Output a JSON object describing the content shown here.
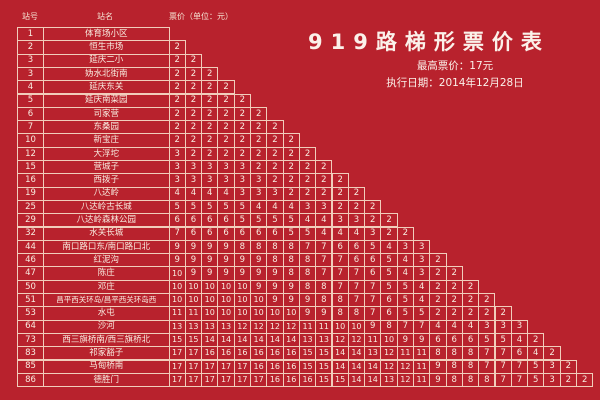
{
  "header": {
    "station_no": "站号",
    "station_name": "站名",
    "fare_label": "票价（单位：元）"
  },
  "title": "919路梯形票价表",
  "max_fare": "最高票价：17元",
  "effective_date": "执行日期：2014年12月28日",
  "colors": {
    "background": "#b8222d",
    "grid": "#f1cdbb",
    "text": "#f8ece0"
  },
  "stations": [
    {
      "no": "1",
      "name": "体育场小区",
      "fares": []
    },
    {
      "no": "2",
      "name": "恒生市场",
      "fares": [
        2
      ]
    },
    {
      "no": "3",
      "name": "延庆二小",
      "fares": [
        2,
        2
      ]
    },
    {
      "no": "3",
      "name": "妫水北街南",
      "fares": [
        2,
        2,
        2
      ]
    },
    {
      "no": "4",
      "name": "延庆东关",
      "fares": [
        2,
        2,
        2,
        2
      ]
    },
    {
      "no": "5",
      "name": "延庆南菜园",
      "fares": [
        2,
        2,
        2,
        2,
        2
      ]
    },
    {
      "no": "6",
      "name": "司家营",
      "fares": [
        2,
        2,
        2,
        2,
        2,
        2
      ]
    },
    {
      "no": "7",
      "name": "东桑园",
      "fares": [
        2,
        2,
        2,
        2,
        2,
        2,
        2
      ]
    },
    {
      "no": "10",
      "name": "新宝庄",
      "fares": [
        2,
        2,
        2,
        2,
        2,
        2,
        2,
        2
      ]
    },
    {
      "no": "12",
      "name": "大浮坨",
      "fares": [
        3,
        2,
        2,
        2,
        2,
        2,
        2,
        2,
        2
      ]
    },
    {
      "no": "15",
      "name": "营城子",
      "fares": [
        3,
        3,
        3,
        3,
        3,
        2,
        2,
        2,
        2,
        2
      ]
    },
    {
      "no": "16",
      "name": "西拨子",
      "fares": [
        3,
        3,
        3,
        3,
        3,
        3,
        2,
        2,
        2,
        2,
        2
      ]
    },
    {
      "no": "19",
      "name": "八达岭",
      "fares": [
        4,
        4,
        4,
        4,
        3,
        3,
        3,
        2,
        2,
        2,
        2,
        2
      ]
    },
    {
      "no": "25",
      "name": "八达岭古长城",
      "fares": [
        5,
        5,
        5,
        5,
        5,
        4,
        4,
        4,
        3,
        3,
        2,
        2,
        2
      ]
    },
    {
      "no": "29",
      "name": "八达岭森林公园",
      "fares": [
        6,
        6,
        6,
        6,
        5,
        5,
        5,
        5,
        4,
        4,
        3,
        3,
        2,
        2
      ]
    },
    {
      "no": "32",
      "name": "水关长城",
      "fares": [
        7,
        6,
        6,
        6,
        6,
        6,
        6,
        5,
        5,
        4,
        4,
        4,
        3,
        2,
        2
      ]
    },
    {
      "no": "44",
      "name": "南口路口东/南口路口北",
      "fares": [
        9,
        9,
        9,
        9,
        8,
        8,
        8,
        8,
        7,
        7,
        6,
        6,
        5,
        4,
        3,
        3
      ]
    },
    {
      "no": "46",
      "name": "红泥沟",
      "fares": [
        9,
        9,
        9,
        9,
        9,
        9,
        8,
        8,
        8,
        7,
        7,
        6,
        6,
        5,
        4,
        3,
        2
      ]
    },
    {
      "no": "47",
      "name": "陈庄",
      "fares": [
        10,
        9,
        9,
        9,
        9,
        9,
        9,
        8,
        8,
        7,
        7,
        7,
        6,
        5,
        4,
        3,
        2,
        2
      ]
    },
    {
      "no": "50",
      "name": "邓庄",
      "fares": [
        10,
        10,
        10,
        10,
        10,
        9,
        9,
        9,
        8,
        8,
        7,
        7,
        7,
        5,
        5,
        4,
        2,
        2,
        2
      ]
    },
    {
      "no": "51",
      "name": "昌平西关环岛/昌平西关环岛西",
      "fares": [
        10,
        10,
        10,
        10,
        10,
        10,
        9,
        9,
        9,
        8,
        8,
        7,
        7,
        6,
        5,
        4,
        2,
        2,
        2,
        2
      ]
    },
    {
      "no": "53",
      "name": "水屯",
      "fares": [
        11,
        11,
        10,
        10,
        10,
        10,
        10,
        10,
        9,
        9,
        8,
        8,
        7,
        6,
        5,
        5,
        2,
        2,
        2,
        2,
        2
      ]
    },
    {
      "no": "64",
      "name": "沙河",
      "fares": [
        13,
        13,
        13,
        13,
        12,
        12,
        12,
        12,
        11,
        11,
        10,
        10,
        9,
        8,
        7,
        7,
        4,
        4,
        4,
        3,
        3,
        3
      ]
    },
    {
      "no": "73",
      "name": "西三旗桥南/西三旗桥北",
      "fares": [
        15,
        15,
        14,
        14,
        14,
        14,
        14,
        14,
        13,
        13,
        12,
        12,
        11,
        10,
        9,
        9,
        6,
        6,
        6,
        5,
        5,
        4,
        2
      ]
    },
    {
      "no": "83",
      "name": "祁家豁子",
      "fares": [
        17,
        17,
        16,
        16,
        16,
        16,
        16,
        16,
        15,
        15,
        14,
        14,
        13,
        12,
        11,
        11,
        8,
        8,
        8,
        7,
        7,
        6,
        4,
        2
      ]
    },
    {
      "no": "85",
      "name": "马甸桥南",
      "fares": [
        17,
        17,
        17,
        17,
        17,
        16,
        16,
        16,
        15,
        15,
        14,
        14,
        14,
        12,
        12,
        11,
        9,
        8,
        8,
        7,
        7,
        7,
        5,
        3,
        2
      ]
    },
    {
      "no": "86",
      "name": "德胜门",
      "fares": [
        17,
        17,
        17,
        17,
        17,
        17,
        16,
        16,
        16,
        15,
        15,
        14,
        14,
        13,
        12,
        11,
        9,
        8,
        8,
        8,
        7,
        7,
        5,
        3,
        2,
        2
      ]
    }
  ]
}
